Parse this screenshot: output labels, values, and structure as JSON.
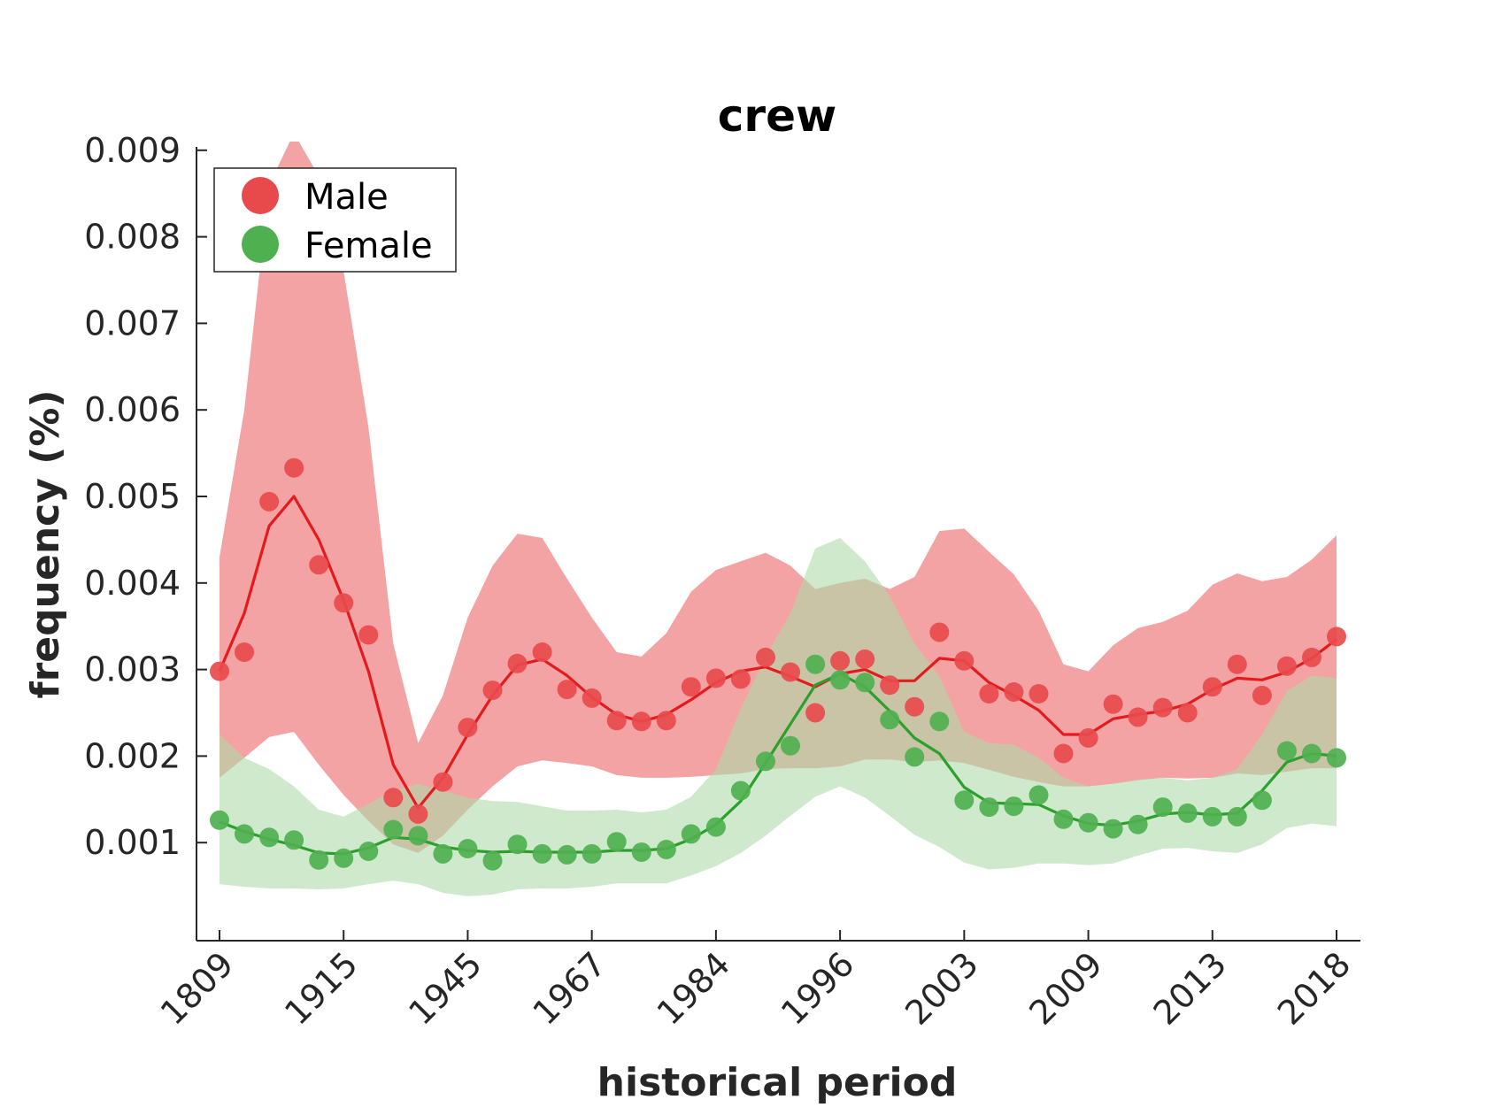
{
  "chart_data": {
    "type": "line",
    "title": "crew",
    "xlabel": "historical period",
    "ylabel": "frequency (%)",
    "x_tick_labels": [
      "1809",
      "1915",
      "1945",
      "1967",
      "1984",
      "1996",
      "2003",
      "2009",
      "2013",
      "2018"
    ],
    "y_ticks": [
      0.001,
      0.002,
      0.003,
      0.004,
      0.005,
      0.006,
      0.007,
      0.008,
      0.009
    ],
    "y_tick_labels": [
      "0.001",
      "0.002",
      "0.003",
      "0.004",
      "0.005",
      "0.006",
      "0.007",
      "0.008",
      "0.009"
    ],
    "ylim": [
      0.00035,
      0.0092
    ],
    "grid": false,
    "legend_position": "top-left",
    "series": [
      {
        "name": "Male",
        "color": "#e41a1c",
        "marker_color": "#e84a4c",
        "band_color": "#f4a3a4",
        "points": [
          0.00298,
          0.0032,
          0.00494,
          0.00533,
          0.00421,
          0.00377,
          0.0034,
          0.00152,
          0.00133,
          0.0017,
          0.00233,
          0.00276,
          0.00307,
          0.0032,
          0.00277,
          0.00267,
          0.00241,
          0.0024,
          0.00241,
          0.0028,
          0.0029,
          0.00289,
          0.00314,
          0.00297,
          0.0025,
          0.0031,
          0.00312,
          0.00282,
          0.00257,
          0.00343,
          0.0031,
          0.00272,
          0.00274,
          0.00272,
          0.00203,
          0.00221,
          0.0026,
          0.00245,
          0.00256,
          0.0025,
          0.0028,
          0.00306,
          0.0027,
          0.00304,
          0.00314,
          0.00338
        ],
        "smooth": [
          0.00298,
          0.00365,
          0.00466,
          0.005,
          0.0045,
          0.0038,
          0.00298,
          0.0019,
          0.0014,
          0.00175,
          0.00225,
          0.0027,
          0.00305,
          0.00312,
          0.00293,
          0.00268,
          0.00248,
          0.0024,
          0.00248,
          0.00265,
          0.00285,
          0.00298,
          0.00303,
          0.00292,
          0.0028,
          0.00295,
          0.003,
          0.00287,
          0.00287,
          0.00313,
          0.0031,
          0.00285,
          0.0027,
          0.00253,
          0.00225,
          0.00225,
          0.00243,
          0.00248,
          0.00252,
          0.0026,
          0.00277,
          0.0029,
          0.00288,
          0.00297,
          0.00313,
          0.00335
        ],
        "upper": [
          0.0043,
          0.006,
          0.0086,
          0.0092,
          0.0087,
          0.0076,
          0.0058,
          0.0033,
          0.00215,
          0.0027,
          0.0036,
          0.0042,
          0.00457,
          0.00452,
          0.00405,
          0.0036,
          0.0032,
          0.00315,
          0.00342,
          0.0039,
          0.00415,
          0.00425,
          0.00435,
          0.0042,
          0.00393,
          0.004,
          0.00405,
          0.00393,
          0.00407,
          0.0046,
          0.00463,
          0.00436,
          0.0041,
          0.00368,
          0.00306,
          0.00298,
          0.00328,
          0.00348,
          0.00355,
          0.00368,
          0.00398,
          0.00411,
          0.00402,
          0.00407,
          0.00427,
          0.00455
        ],
        "lower": [
          0.00175,
          0.00198,
          0.00222,
          0.00228,
          0.0019,
          0.00155,
          0.00125,
          0.00098,
          0.00088,
          0.00108,
          0.00138,
          0.00165,
          0.00188,
          0.00195,
          0.00192,
          0.00188,
          0.00178,
          0.00175,
          0.00175,
          0.00176,
          0.00178,
          0.0018,
          0.00185,
          0.00186,
          0.00186,
          0.00188,
          0.00196,
          0.00196,
          0.00193,
          0.00195,
          0.00192,
          0.00184,
          0.00176,
          0.0017,
          0.00165,
          0.00165,
          0.00168,
          0.00172,
          0.00175,
          0.00174,
          0.00175,
          0.0018,
          0.00178,
          0.00182,
          0.00186,
          0.00186
        ]
      },
      {
        "name": "Female",
        "color": "#2ca02c",
        "marker_color": "#4fb04f",
        "band_color": "#addbaa",
        "points": [
          0.00126,
          0.0011,
          0.00106,
          0.00103,
          0.0008,
          0.00082,
          0.0009,
          0.00115,
          0.00108,
          0.00087,
          0.00093,
          0.00079,
          0.00098,
          0.00087,
          0.00086,
          0.00087,
          0.00101,
          0.00089,
          0.00092,
          0.0011,
          0.00118,
          0.0016,
          0.00194,
          0.00212,
          0.00306,
          0.00288,
          0.00285,
          0.00242,
          0.00199,
          0.0024,
          0.00149,
          0.00141,
          0.00142,
          0.00155,
          0.00127,
          0.00123,
          0.00116,
          0.00121,
          0.00141,
          0.00134,
          0.0013,
          0.0013,
          0.00149,
          0.00206,
          0.00203,
          0.00198
        ],
        "smooth": [
          0.00124,
          0.00113,
          0.00104,
          0.00097,
          0.00088,
          0.00087,
          0.00094,
          0.00106,
          0.00104,
          0.00095,
          0.00091,
          0.00089,
          0.0009,
          0.00089,
          0.00089,
          0.00089,
          0.00091,
          0.00091,
          0.00093,
          0.00104,
          0.00121,
          0.00148,
          0.00192,
          0.00237,
          0.00282,
          0.00295,
          0.0028,
          0.00252,
          0.00221,
          0.00203,
          0.00164,
          0.00146,
          0.00145,
          0.00144,
          0.00131,
          0.00122,
          0.0012,
          0.00125,
          0.00133,
          0.00135,
          0.00132,
          0.00134,
          0.0016,
          0.00193,
          0.00203,
          0.002
        ],
        "upper": [
          0.00225,
          0.00198,
          0.00185,
          0.00165,
          0.00138,
          0.0013,
          0.00145,
          0.0016,
          0.00168,
          0.0016,
          0.00152,
          0.00148,
          0.00147,
          0.00142,
          0.00137,
          0.00137,
          0.00138,
          0.00135,
          0.00138,
          0.00153,
          0.00185,
          0.00255,
          0.00315,
          0.00365,
          0.0044,
          0.00452,
          0.00425,
          0.00385,
          0.0033,
          0.00292,
          0.00228,
          0.00215,
          0.00213,
          0.00198,
          0.00175,
          0.00165,
          0.00168,
          0.00173,
          0.00175,
          0.00172,
          0.00175,
          0.00185,
          0.00225,
          0.00275,
          0.00293,
          0.0029
        ],
        "lower": [
          0.00052,
          0.00049,
          0.00047,
          0.00047,
          0.00046,
          0.00047,
          0.00052,
          0.00056,
          0.00052,
          0.00042,
          0.00038,
          0.0004,
          0.00046,
          0.00047,
          0.00047,
          0.00049,
          0.00053,
          0.00053,
          0.00053,
          0.00062,
          0.00073,
          0.00088,
          0.00108,
          0.00131,
          0.00153,
          0.00165,
          0.00152,
          0.00131,
          0.00109,
          0.00095,
          0.00077,
          0.00069,
          0.00071,
          0.00076,
          0.00076,
          0.00074,
          0.00076,
          0.00085,
          0.00093,
          0.00094,
          0.0009,
          0.00088,
          0.00098,
          0.00117,
          0.00122,
          0.00119
        ]
      }
    ],
    "overlap_color": "#a09c68"
  }
}
